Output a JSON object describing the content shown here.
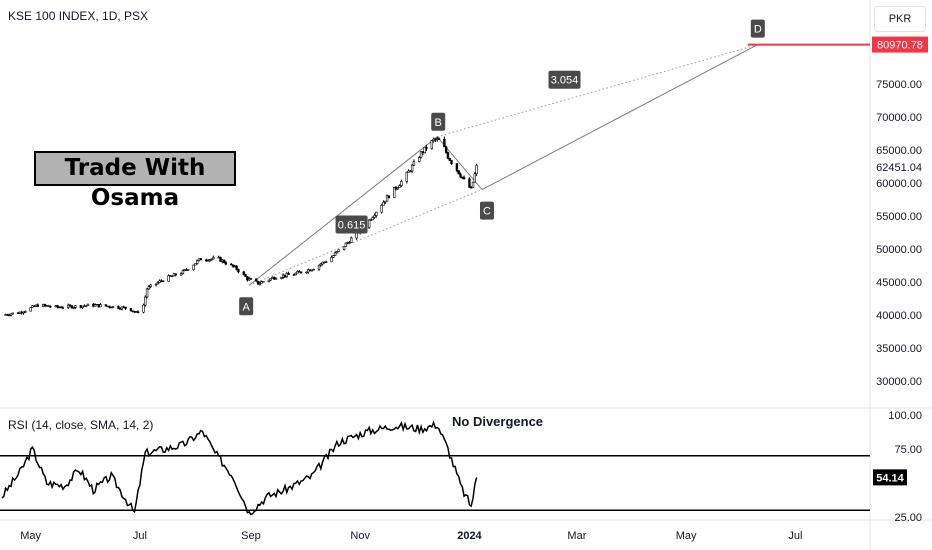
{
  "header": {
    "symbol_title": "KSE 100 INDEX, 1D, PSX",
    "currency": "PKR"
  },
  "overlay_text": "Trade With Osama",
  "price_axis": {
    "ticks": [
      "30000.00",
      "35000.00",
      "40000.00",
      "45000.00",
      "50000.00",
      "55000.00",
      "60000.00",
      "65000.00",
      "70000.00",
      "75000.00"
    ],
    "last_price_label": "62451.04",
    "target_label": "80970.78",
    "target_color": "#f23645"
  },
  "time_axis": {
    "ticks": [
      "May",
      "Jul",
      "Sep",
      "Nov",
      "2024",
      "Mar",
      "May",
      "Jul"
    ]
  },
  "rsi": {
    "title": "RSI (14, close, SMA, 14, 2)",
    "ticks": [
      "100.00",
      "75.00",
      "25.00"
    ],
    "current_label": "54.14",
    "note": "No Divergence"
  },
  "pattern": {
    "points": [
      "A",
      "B",
      "C",
      "D"
    ],
    "ratio_bc": "0.615",
    "ratio_cd": "3.054"
  },
  "chart_data": {
    "type": "candlestick",
    "title": "KSE 100 INDEX, 1D, PSX",
    "ylim": [
      27000,
      84000
    ],
    "x_range": [
      "2023-04-15",
      "2024-08-15"
    ],
    "price_series": [
      {
        "date": "2023-04-15",
        "value": 40000
      },
      {
        "date": "2023-04-25",
        "value": 40400
      },
      {
        "date": "2023-05-05",
        "value": 41500
      },
      {
        "date": "2023-05-15",
        "value": 41200
      },
      {
        "date": "2023-05-25",
        "value": 41300
      },
      {
        "date": "2023-06-05",
        "value": 41500
      },
      {
        "date": "2023-06-15",
        "value": 41300
      },
      {
        "date": "2023-06-25",
        "value": 41000
      },
      {
        "date": "2023-06-29",
        "value": 40300
      },
      {
        "date": "2023-07-03",
        "value": 41500
      },
      {
        "date": "2023-07-05",
        "value": 44000
      },
      {
        "date": "2023-07-15",
        "value": 45500
      },
      {
        "date": "2023-07-25",
        "value": 46500
      },
      {
        "date": "2023-08-04",
        "value": 48500
      },
      {
        "date": "2023-08-14",
        "value": 48500
      },
      {
        "date": "2023-08-24",
        "value": 47000
      },
      {
        "date": "2023-08-30",
        "value": 45500
      },
      {
        "date": "2023-09-05",
        "value": 44800
      },
      {
        "date": "2023-09-15",
        "value": 45800
      },
      {
        "date": "2023-09-25",
        "value": 46200
      },
      {
        "date": "2023-10-05",
        "value": 47000
      },
      {
        "date": "2023-10-15",
        "value": 48500
      },
      {
        "date": "2023-10-25",
        "value": 51000
      },
      {
        "date": "2023-11-05",
        "value": 54000
      },
      {
        "date": "2023-11-15",
        "value": 57500
      },
      {
        "date": "2023-11-25",
        "value": 60500
      },
      {
        "date": "2023-12-05",
        "value": 64500
      },
      {
        "date": "2023-12-12",
        "value": 66500
      },
      {
        "date": "2023-12-16",
        "value": 66500
      },
      {
        "date": "2023-12-20",
        "value": 64000
      },
      {
        "date": "2023-12-25",
        "value": 62000
      },
      {
        "date": "2023-12-30",
        "value": 60000
      },
      {
        "date": "2024-01-02",
        "value": 59000
      },
      {
        "date": "2024-01-05",
        "value": 62451.04
      }
    ],
    "last_price": 62451.04,
    "pattern_points": [
      {
        "label": "A",
        "date": "2023-08-31",
        "value": 44500
      },
      {
        "label": "B",
        "date": "2023-12-14",
        "value": 67000
      },
      {
        "label": "C",
        "date": "2024-01-08",
        "value": 59000
      },
      {
        "label": "D",
        "date": "2024-06-10",
        "value": 80970.78
      }
    ],
    "ratios": [
      {
        "label": "0.615",
        "between": "AC"
      },
      {
        "label": "3.054",
        "between": "BD"
      }
    ],
    "target_price": 80970.78,
    "rsi": {
      "name": "RSI (14, close, SMA, 14, 2)",
      "ylim": [
        25,
        100
      ],
      "bands": [
        70,
        30
      ],
      "current": 54.14,
      "values": [
        {
          "date": "2023-04-15",
          "value": 40
        },
        {
          "date": "2023-04-25",
          "value": 58
        },
        {
          "date": "2023-05-02",
          "value": 75
        },
        {
          "date": "2023-05-10",
          "value": 50
        },
        {
          "date": "2023-05-20",
          "value": 48
        },
        {
          "date": "2023-05-28",
          "value": 60
        },
        {
          "date": "2023-06-05",
          "value": 45
        },
        {
          "date": "2023-06-15",
          "value": 55
        },
        {
          "date": "2023-06-28",
          "value": 28
        },
        {
          "date": "2023-07-04",
          "value": 72
        },
        {
          "date": "2023-07-15",
          "value": 75
        },
        {
          "date": "2023-07-25",
          "value": 78
        },
        {
          "date": "2023-08-05",
          "value": 88
        },
        {
          "date": "2023-08-12",
          "value": 72
        },
        {
          "date": "2023-08-22",
          "value": 55
        },
        {
          "date": "2023-08-31",
          "value": 28
        },
        {
          "date": "2023-09-10",
          "value": 40
        },
        {
          "date": "2023-09-20",
          "value": 45
        },
        {
          "date": "2023-10-05",
          "value": 55
        },
        {
          "date": "2023-10-20",
          "value": 80
        },
        {
          "date": "2023-11-05",
          "value": 88
        },
        {
          "date": "2023-11-20",
          "value": 92
        },
        {
          "date": "2023-12-05",
          "value": 90
        },
        {
          "date": "2023-12-14",
          "value": 93
        },
        {
          "date": "2023-12-20",
          "value": 75
        },
        {
          "date": "2023-12-28",
          "value": 45
        },
        {
          "date": "2024-01-02",
          "value": 33
        },
        {
          "date": "2024-01-05",
          "value": 54.14
        }
      ]
    },
    "colors": {
      "candle": "#000000",
      "target_line": "#f23645",
      "pattern_line": "#787b86",
      "label_bg": "#4a4a4a"
    }
  }
}
